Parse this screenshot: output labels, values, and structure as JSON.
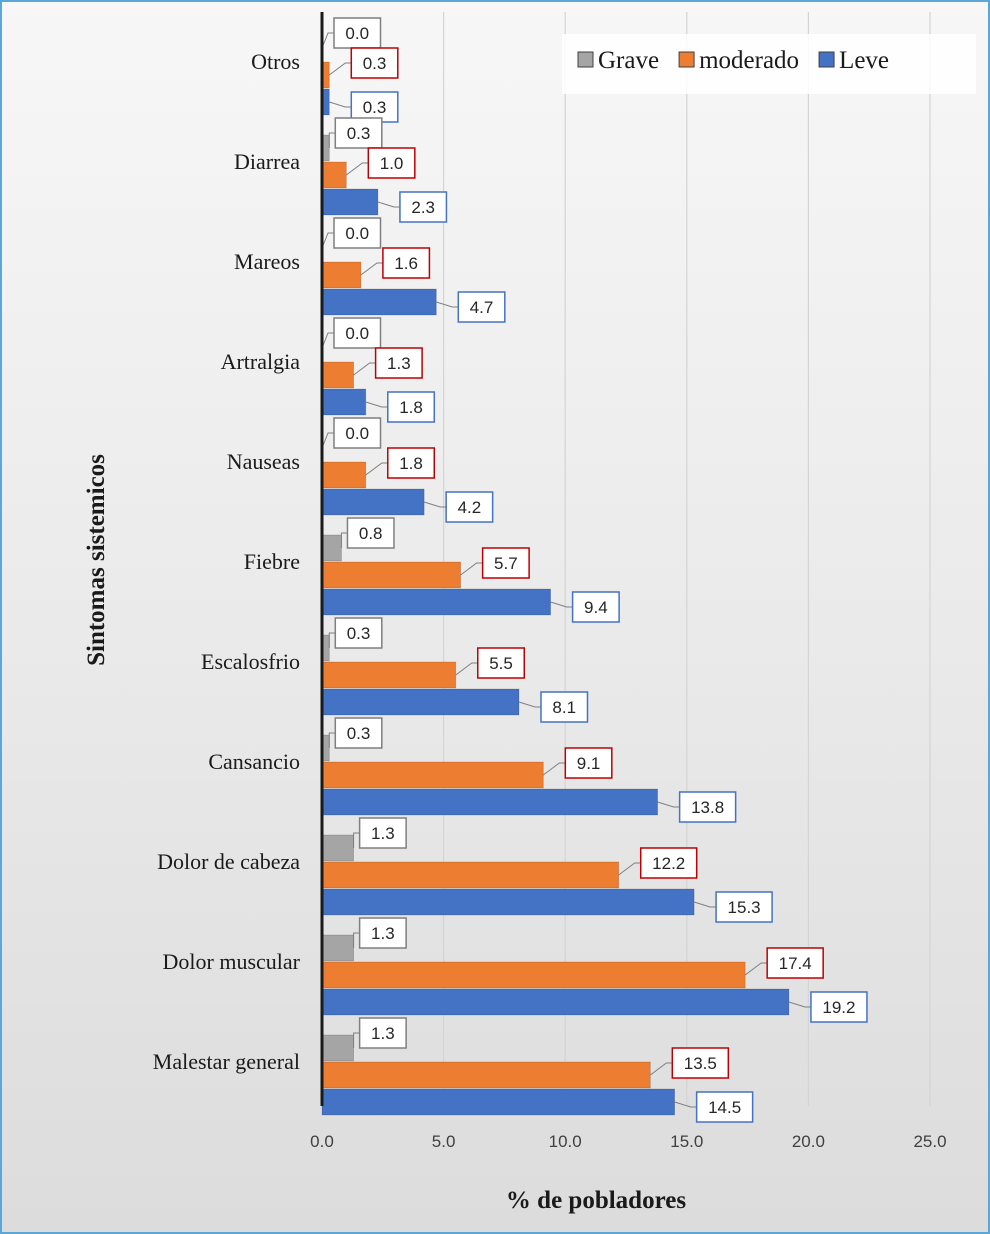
{
  "chart_data": {
    "type": "bar",
    "orientation": "horizontal",
    "categories": [
      "Otros",
      "Diarrea",
      "Mareos",
      "Artralgia",
      "Nauseas",
      "Fiebre",
      "Escalosfrio",
      "Cansancio",
      "Dolor de cabeza",
      "Dolor muscular",
      "Malestar general"
    ],
    "series": [
      {
        "name": "Grave",
        "color": "#a5a5a5",
        "label_border": "#7f7f7f",
        "values": [
          0.0,
          0.3,
          0.0,
          0.0,
          0.0,
          0.8,
          0.3,
          0.3,
          1.3,
          1.3,
          1.3
        ]
      },
      {
        "name": "moderado",
        "color": "#ed7d31",
        "label_border": "#c00000",
        "values": [
          0.3,
          1.0,
          1.6,
          1.3,
          1.8,
          5.7,
          5.5,
          9.1,
          12.2,
          17.4,
          13.5
        ]
      },
      {
        "name": "Leve",
        "color": "#4472c4",
        "label_border": "#4472c4",
        "values": [
          0.3,
          2.3,
          4.7,
          1.8,
          4.2,
          9.4,
          8.1,
          13.8,
          15.3,
          19.2,
          14.5
        ]
      }
    ],
    "data_labels": {
      "Grave": [
        "0.0",
        "0.3",
        "0.0",
        "0.0",
        "0.0",
        "0.8",
        "0.3",
        "0.3",
        "1.3",
        "1.3",
        "1.3"
      ],
      "moderado": [
        "0.3",
        "1.0",
        "1.6",
        "1.3",
        "1.8",
        "5.7",
        "5.5",
        "9.1",
        "12.2",
        "17.4",
        "13.5"
      ],
      "Leve": [
        "0.3",
        "2.3",
        "4.7",
        "1.8",
        "4.2",
        "9.4",
        "8.1",
        "13.8",
        "15.3",
        "19.2",
        "14.5"
      ]
    },
    "xlabel": "% de pobladores",
    "ylabel": "Sintomas sistemicos",
    "xlim": [
      0,
      25
    ],
    "xticks": [
      0,
      5,
      10,
      15,
      20,
      25
    ],
    "xtick_labels": [
      "0.0",
      "5.0",
      "10.0",
      "15.0",
      "20.0",
      "25.0"
    ],
    "legend": {
      "position": "top-right",
      "order": [
        "Grave",
        "moderado",
        "Leve"
      ]
    },
    "grid": {
      "vertical": true,
      "horizontal": false
    }
  }
}
